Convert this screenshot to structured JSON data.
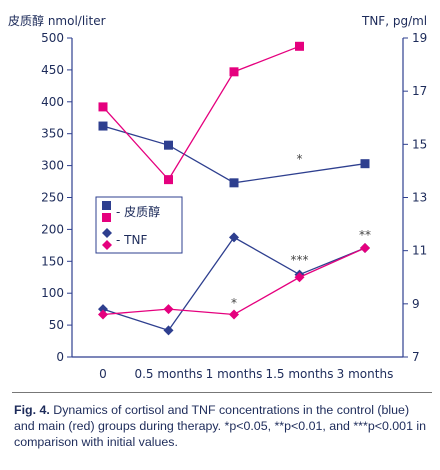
{
  "chart_data": {
    "type": "line",
    "left_axis_title": "皮质醇  nmol/liter",
    "right_axis_title": "TNF, pg/ml",
    "categories": [
      "0",
      "0.5 months",
      "1 months",
      "1.5 months",
      "3 months"
    ],
    "y_left": {
      "min": 0,
      "max": 500,
      "step": 50
    },
    "y_right": {
      "min": 7,
      "max": 19,
      "step": 2
    },
    "series": [
      {
        "name": "皮质醇",
        "group": "control",
        "axis": "left",
        "marker": "square",
        "color": "#2e3f8f",
        "values": [
          362,
          332,
          273,
          null,
          303
        ]
      },
      {
        "name": "皮质醇",
        "group": "main",
        "axis": "left",
        "marker": "square",
        "color": "#e5007e",
        "values": [
          392,
          278,
          447,
          487,
          null
        ]
      },
      {
        "name": "TNF",
        "group": "control",
        "axis": "right",
        "marker": "diamond",
        "color": "#2e3f8f",
        "values": [
          8.8,
          8.0,
          11.5,
          10.1,
          11.1
        ]
      },
      {
        "name": "TNF",
        "group": "main",
        "axis": "right",
        "marker": "diamond",
        "color": "#e5007e",
        "values": [
          8.6,
          8.8,
          8.6,
          10.0,
          11.1
        ]
      }
    ],
    "annotations": [
      {
        "text": "*",
        "category": 3,
        "axis": "left",
        "value": 304
      },
      {
        "text": "*",
        "category": 2,
        "axis": "left",
        "value": 78
      },
      {
        "text": "***",
        "category": 3,
        "axis": "left",
        "value": 146
      },
      {
        "text": "**",
        "category": 4,
        "axis": "left",
        "value": 185
      }
    ],
    "legend": {
      "placement": "center-left",
      "entries": [
        {
          "label": "- 皮质醇",
          "markers": [
            "square-blue",
            "square-pink"
          ]
        },
        {
          "label": "- TNF",
          "markers": [
            "diamond-blue",
            "diamond-pink"
          ]
        }
      ]
    }
  },
  "caption": {
    "fig_label": "Fig. 4.",
    "text": "Dynamics of cortisol and TNF concentrations in the control (blue) and main (red) groups during therapy. *p<0.05, **p<0.01, and ***p<0.001 in comparison with initial values."
  }
}
